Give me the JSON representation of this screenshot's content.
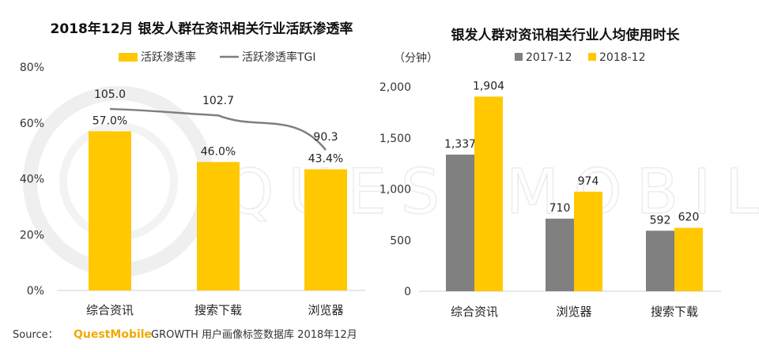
{
  "source": {
    "prefix": "Source：",
    "brand": "QuestMobile",
    "text": "GROWTH 用户画像标签数据库 2018年12月"
  },
  "watermark": "QUESTMOBILE",
  "colors": {
    "yellow": "#ffc800",
    "gray": "#808080",
    "line": "#7f7f7f",
    "brand": "#f2a900"
  },
  "chart_data": [
    {
      "type": "bar",
      "title": "2018年12月 银发人群在资讯相关行业活跃渗透率",
      "categories": [
        "综合资讯",
        "搜索下载",
        "浏览器"
      ],
      "series": [
        {
          "name": "活跃渗透率",
          "values": [
            57.0,
            46.0,
            43.4
          ],
          "labels": [
            "57.0%",
            "46.0%",
            "43.4%"
          ],
          "color": "#ffc800"
        },
        {
          "name": "活跃渗透率TGI",
          "type": "line",
          "values": [
            105.0,
            102.7,
            90.3
          ],
          "labels": [
            "105.0",
            "102.7",
            "90.3"
          ],
          "color": "#7f7f7f"
        }
      ],
      "yticks": [
        "0%",
        "20%",
        "40%",
        "60%",
        "80%"
      ],
      "ylim": [
        0,
        80
      ],
      "legend": "top"
    },
    {
      "type": "bar",
      "title": "银发人群对资讯相关行业人均使用时长",
      "unit": "（分钟）",
      "categories": [
        "综合资讯",
        "浏览器",
        "搜索下载"
      ],
      "series": [
        {
          "name": "2017-12",
          "values": [
            1337,
            710,
            592
          ],
          "labels": [
            "1,337",
            "710",
            "592"
          ],
          "color": "#808080"
        },
        {
          "name": "2018-12",
          "values": [
            1904,
            974,
            620
          ],
          "labels": [
            "1,904",
            "974",
            "620"
          ],
          "color": "#ffc800"
        }
      ],
      "yticks": [
        "0",
        "500",
        "1,000",
        "1,500",
        "2,000"
      ],
      "ylim": [
        0,
        2000
      ],
      "legend": "top"
    }
  ]
}
